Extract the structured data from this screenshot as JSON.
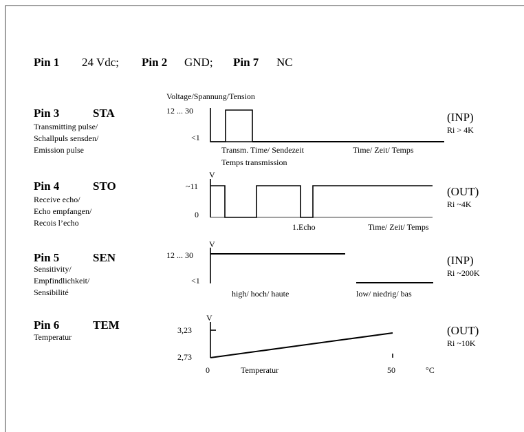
{
  "header": {
    "pin1_label": "Pin 1",
    "pin1_value": "24 Vdc;",
    "pin2_label": "Pin 2",
    "pin2_value": "GND;",
    "pin7_label": "Pin 7",
    "pin7_value": "NC"
  },
  "voltage_title": "Voltage/Spannung/Tension",
  "pins": [
    {
      "label": "Pin 3",
      "signal": "STA",
      "desc": [
        "Transmitting pulse/",
        "Schallpuls sensden/",
        "Emission pulse"
      ],
      "y_high": "12 ... 30",
      "y_low": "<1",
      "x_labels": [
        "Transm. Time/ Sendezeit",
        "Temps transmission",
        "Time/ Zeit/ Temps"
      ],
      "direction": "(INP)",
      "ri": "Ri > 4K"
    },
    {
      "label": "Pin 4",
      "signal": "STO",
      "desc": [
        "Receive echo/",
        "Echo empfangen/",
        "Recois l’echo"
      ],
      "unit": "V",
      "y_high": "~11",
      "y_low": "0",
      "x_labels": [
        "1.Echo",
        "Time/ Zeit/ Temps"
      ],
      "direction": "(OUT)",
      "ri": "Ri ~4K"
    },
    {
      "label": "Pin 5",
      "signal": "SEN",
      "desc": [
        "Sensitivity/",
        "Empfindlichkeit/",
        "Sensibilité"
      ],
      "unit": "V",
      "y_high": "12 ... 30",
      "y_low": "<1",
      "x_labels": [
        "high/ hoch/ haute",
        "low/ niedrig/ bas"
      ],
      "direction": "(INP)",
      "ri": "Ri ~200K"
    },
    {
      "label": "Pin 6",
      "signal": "TEM",
      "desc": [
        "Temperatur"
      ],
      "unit": "V",
      "y_high": "3,23",
      "y_low": "2,73",
      "x_labels": [
        "0",
        "Temperatur",
        "50",
        "°C"
      ],
      "direction": "(OUT)",
      "ri": "Ri ~10K"
    }
  ],
  "colors": {
    "line": "#000000",
    "frame": "#444444",
    "background": "#ffffff"
  }
}
